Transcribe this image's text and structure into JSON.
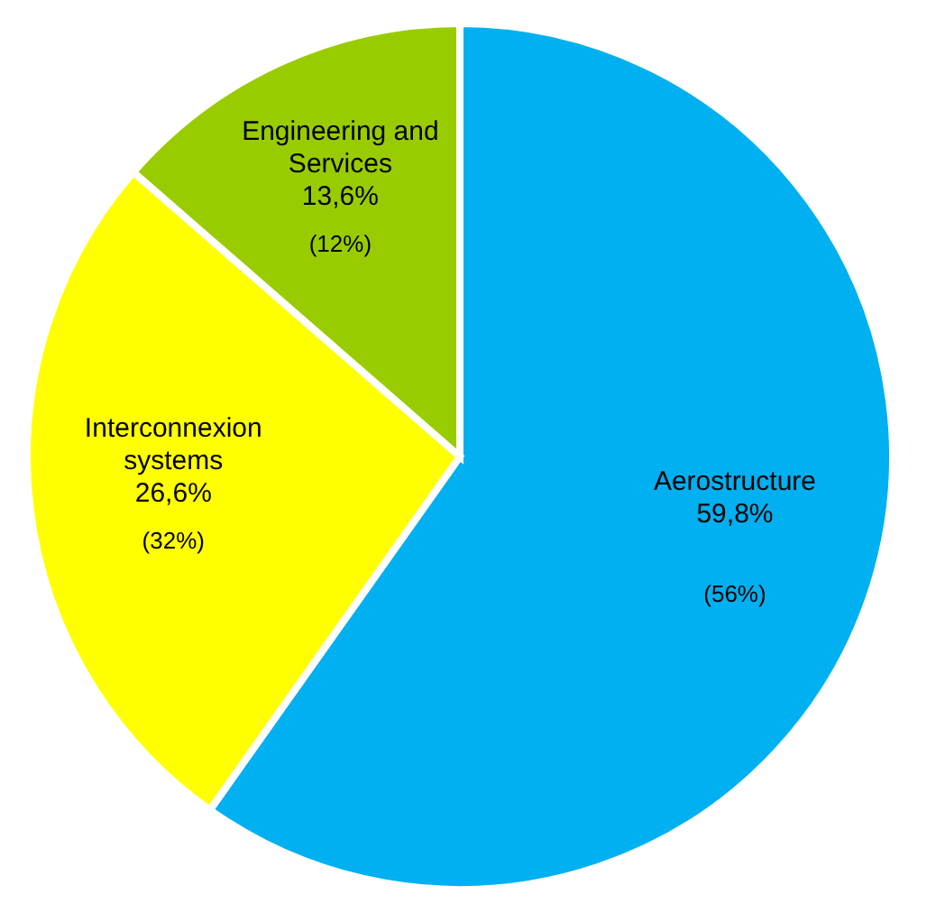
{
  "chart_data": {
    "type": "pie",
    "categories": [
      "Aerostructure",
      "Interconnexion systems",
      "Engineering and Services"
    ],
    "values": [
      59.8,
      26.6,
      13.6
    ],
    "colors": [
      "#00b0f0",
      "#ffff00",
      "#99cc00"
    ],
    "value_labels": [
      "59,8%",
      "26,6%",
      "13,6%"
    ],
    "annotations": [
      "(56%)",
      "(32%)",
      "(12%)"
    ],
    "legend": false
  }
}
